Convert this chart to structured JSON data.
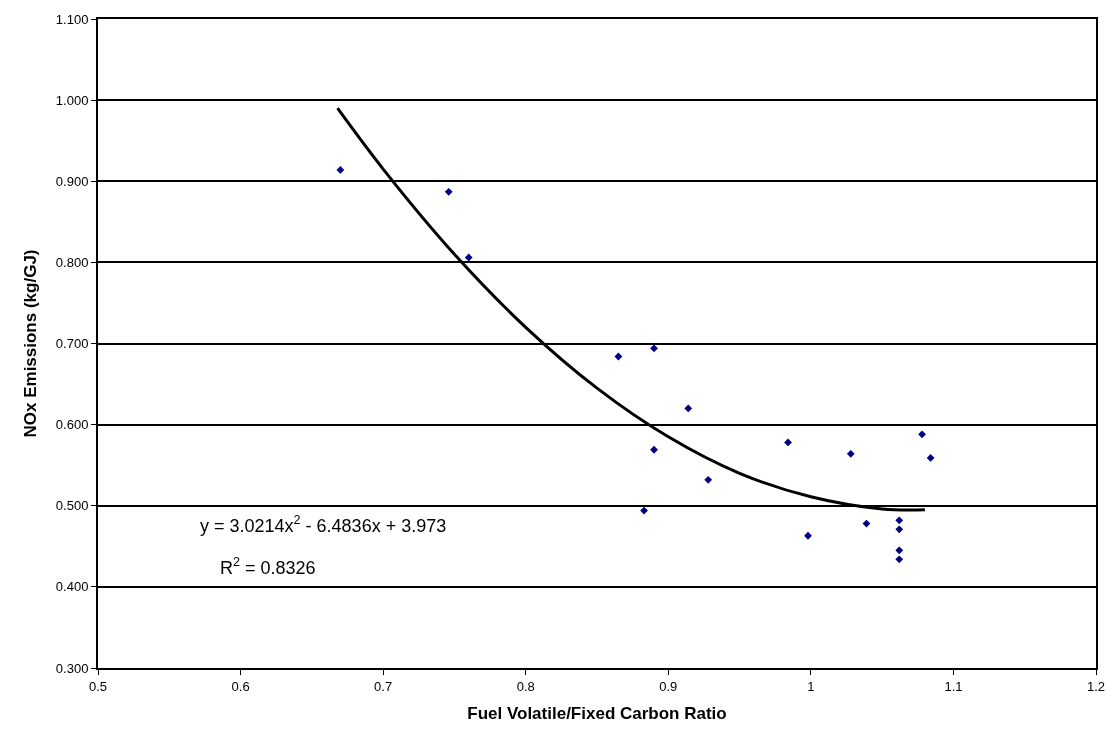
{
  "chart_data": {
    "type": "scatter",
    "xlabel": "Fuel Volatile/Fixed Carbon Ratio",
    "ylabel": "NOx Emissions (kg/GJ)",
    "xlim": [
      0.5,
      1.2
    ],
    "xticks": [
      0.5,
      0.6,
      0.7,
      0.8,
      0.9,
      1,
      1.1,
      1.2
    ],
    "ylim": [
      0.3,
      1.1
    ],
    "yticks": [
      {
        "value": 0.3,
        "label": "0.300"
      },
      {
        "value": 0.4,
        "label": "0.400"
      },
      {
        "value": 0.5,
        "label": "0.500"
      },
      {
        "value": 0.6,
        "label": "0.600"
      },
      {
        "value": 0.7,
        "label": "0.700"
      },
      {
        "value": 0.8,
        "label": "0.800"
      },
      {
        "value": 0.9,
        "label": "0.900"
      },
      {
        "value": 1.0,
        "label": "1.000"
      },
      {
        "value": 1.1,
        "label": "1.100"
      }
    ],
    "grid": "y",
    "series": [
      {
        "marker": "diamond",
        "color": "#000080",
        "x": [
          0.67,
          0.746,
          0.76,
          0.865,
          0.89,
          0.914,
          0.89,
          0.928,
          0.984,
          1.028,
          0.883,
          0.998,
          1.039,
          1.078,
          1.084,
          1.062,
          1.062,
          1.062,
          1.062
        ],
        "values": [
          0.914,
          0.887,
          0.806,
          0.684,
          0.694,
          0.62,
          0.569,
          0.532,
          0.578,
          0.564,
          0.494,
          0.463,
          0.478,
          0.588,
          0.559,
          0.482,
          0.471,
          0.445,
          0.434
        ]
      },
      {
        "type": "line",
        "color": "#000000",
        "x": [
          0.668,
          0.7,
          0.75,
          0.8,
          0.85,
          0.9,
          0.95,
          1.0,
          1.05,
          1.08
        ],
        "values": [
          0.99,
          0.915,
          0.81,
          0.72,
          0.645,
          0.585,
          0.54,
          0.511,
          0.496,
          0.495
        ]
      }
    ],
    "annotations": [
      "y = 3.0214x$^{2}$ - 6.4836x + 3.973",
      "R$^{2}$ = 0.8326"
    ]
  }
}
